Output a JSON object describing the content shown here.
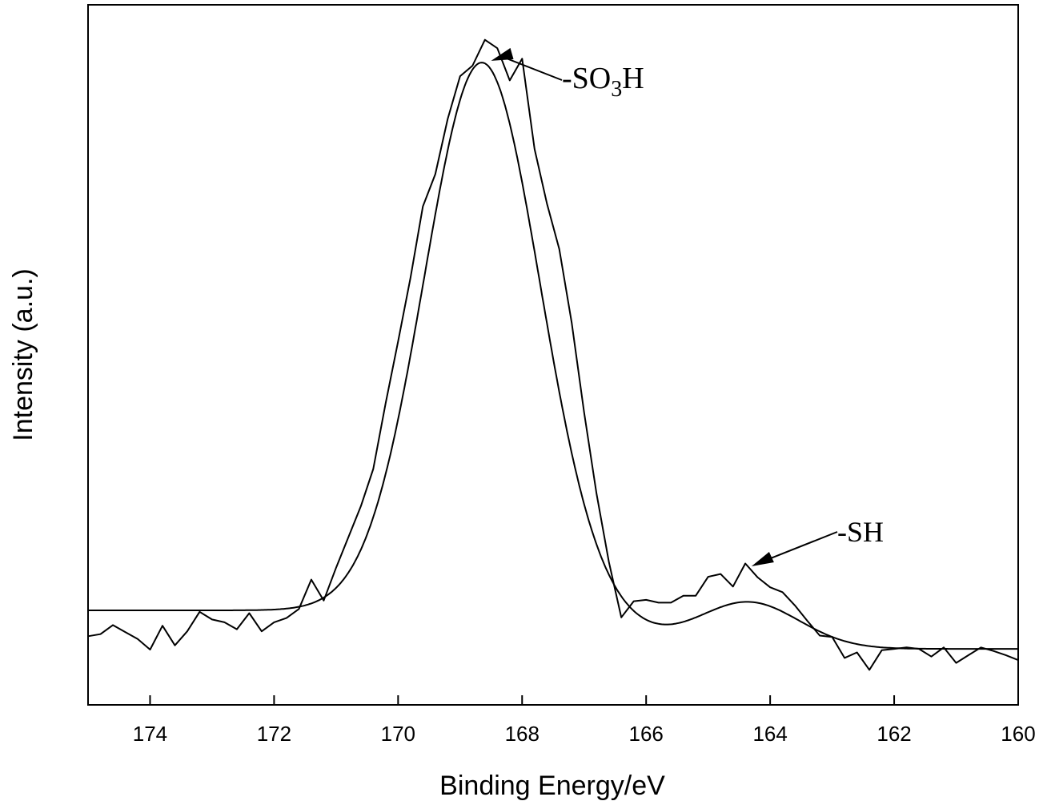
{
  "chart_data": {
    "type": "line",
    "title": "",
    "xlabel": "Binding Energy/eV",
    "ylabel": "Intensity (a.u.)",
    "xlim": [
      175,
      160
    ],
    "ylim": [
      0,
      1
    ],
    "x_reversed": true,
    "grid": false,
    "xticks": [
      174,
      172,
      170,
      168,
      166,
      164,
      162,
      160
    ],
    "xtick_labels": [
      "174",
      "172",
      "170",
      "168",
      "166",
      "164",
      "162",
      160
    ],
    "series": [
      {
        "role": "raw-spectrum",
        "x": [
          175,
          174.8,
          174.6,
          174.4,
          174.2,
          174.0,
          173.8,
          173.6,
          173.4,
          173.2,
          173.0,
          172.8,
          172.6,
          172.4,
          172.2,
          172.0,
          171.8,
          171.6,
          171.4,
          171.2,
          171.0,
          170.8,
          170.6,
          170.4,
          170.2,
          170.0,
          169.8,
          169.6,
          169.4,
          169.2,
          169.0,
          168.8,
          168.6,
          168.4,
          168.2,
          168.0,
          167.8,
          167.6,
          167.4,
          167.2,
          167.0,
          166.8,
          166.6,
          166.4,
          166.2,
          166.0,
          165.8,
          165.6,
          165.4,
          165.2,
          165.0,
          164.8,
          164.6,
          164.4,
          164.2,
          164.0,
          163.8,
          163.6,
          163.4,
          163.2,
          163.0,
          162.8,
          162.6,
          162.4,
          162.2,
          162.0,
          161.8,
          161.6,
          161.4,
          161.2,
          161.0,
          160.8,
          160.6,
          160.4,
          160.2,
          160.0
        ],
        "y": [
          0.098,
          0.101,
          0.114,
          0.104,
          0.094,
          0.079,
          0.113,
          0.085,
          0.105,
          0.133,
          0.122,
          0.118,
          0.108,
          0.131,
          0.105,
          0.118,
          0.124,
          0.137,
          0.179,
          0.149,
          0.196,
          0.24,
          0.284,
          0.337,
          0.431,
          0.519,
          0.61,
          0.712,
          0.758,
          0.837,
          0.898,
          0.913,
          0.95,
          0.938,
          0.892,
          0.923,
          0.794,
          0.716,
          0.651,
          0.546,
          0.418,
          0.302,
          0.204,
          0.125,
          0.148,
          0.15,
          0.146,
          0.146,
          0.156,
          0.156,
          0.183,
          0.187,
          0.169,
          0.202,
          0.182,
          0.168,
          0.161,
          0.142,
          0.12,
          0.099,
          0.097,
          0.067,
          0.075,
          0.05,
          0.078,
          0.08,
          0.082,
          0.08,
          0.069,
          0.082,
          0.06,
          0.071,
          0.082,
          0.077,
          0.071,
          0.064
        ]
      },
      {
        "role": "fitted-envelope",
        "baseline_left": 0.135,
        "baseline_right": 0.08,
        "peaks": [
          {
            "center": 168.65,
            "sigma": 0.93,
            "height": 0.783
          },
          {
            "center": 164.35,
            "sigma": 0.82,
            "height": 0.066
          }
        ]
      }
    ],
    "annotations": [
      {
        "text": "-SO",
        "subscript": "3",
        "suffix": "H",
        "x": 168.5,
        "y": 0.92
      },
      {
        "text": "-SH",
        "x": 164.3,
        "y": 0.198
      }
    ]
  }
}
